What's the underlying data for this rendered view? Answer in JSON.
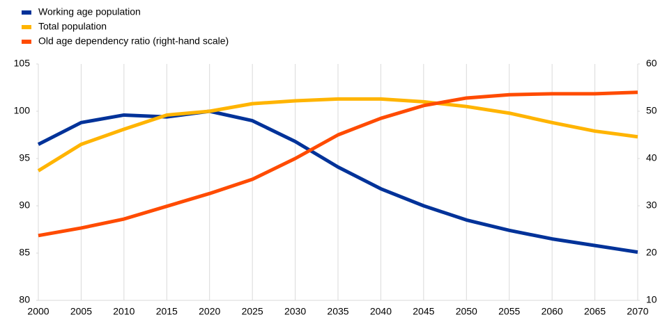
{
  "chart_data": {
    "type": "line",
    "x": [
      2000,
      2005,
      2010,
      2015,
      2020,
      2025,
      2030,
      2035,
      2040,
      2045,
      2050,
      2055,
      2060,
      2065,
      2070
    ],
    "xlim": [
      2000,
      2070
    ],
    "xticks": [
      2000,
      2005,
      2010,
      2015,
      2020,
      2025,
      2030,
      2035,
      2040,
      2045,
      2050,
      2055,
      2060,
      2065,
      2070
    ],
    "ylim": [
      80,
      105
    ],
    "yticks": [
      80,
      85,
      90,
      95,
      100,
      105
    ],
    "y2lim": [
      10,
      60
    ],
    "y2ticks": [
      10,
      20,
      30,
      40,
      50,
      60
    ],
    "grid": "x",
    "legend": "top-left",
    "series": [
      {
        "name": "Working age population",
        "color": "#003299",
        "values": [
          96.5,
          98.8,
          99.6,
          99.4,
          100,
          99.0,
          96.8,
          94.1,
          91.8,
          90.0,
          88.5,
          87.4,
          86.5,
          85.8,
          85.1
        ]
      },
      {
        "name": "Total population",
        "color": "#ffb400",
        "values": [
          93.7,
          96.5,
          98.1,
          99.6,
          100,
          100.8,
          101.1,
          101.3,
          101.3,
          101.0,
          100.5,
          99.8,
          98.8,
          97.9,
          97.3
        ]
      },
      {
        "name": "Old age dependency ratio (right-hand scale)",
        "color": "#ff4b00",
        "axis": "y2",
        "values": [
          23.7,
          25.3,
          27.2,
          29.9,
          32.6,
          35.6,
          40.0,
          45.0,
          48.5,
          51.2,
          52.8,
          53.5,
          53.7,
          53.7,
          54.0
        ]
      }
    ]
  }
}
